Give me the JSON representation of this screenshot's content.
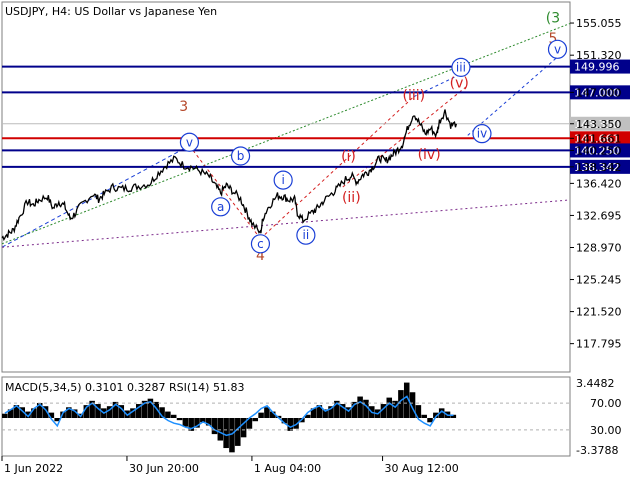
{
  "header": {
    "title": "USDJPY, H4:  US Dollar vs Japanese Yen"
  },
  "indicator": {
    "caption": "MACD(5,34,5) 0.3101 0.3287 RSI(14) 51.83",
    "macd_value": "0.3101",
    "signal_value": "0.3287",
    "rsi_value": "51.83"
  },
  "colors": {
    "price_line": "#000000",
    "blue_wave": "#1a3fd6",
    "red_wave": "#d42020",
    "green_label": "#2e8b2e",
    "brown_label": "#b5482a",
    "level_blue": "#00008b",
    "level_red": "#d10000",
    "current_price_bg": "#c0c0c0",
    "macd_line": "#1e90ff",
    "histogram": "#000000"
  },
  "chart_data": {
    "type": "line",
    "symbol": "USDJPY",
    "timeframe": "H4",
    "ylim": [
      114.5,
      157.5
    ],
    "y_ticks": [
      "155.055",
      "151.320",
      "147.000",
      "143.350",
      "141.661",
      "140.250",
      "138.342",
      "136.420",
      "132.695",
      "128.970",
      "125.245",
      "121.520",
      "117.795"
    ],
    "x_ticks": [
      "1 Jun 2022",
      "30 Jun 20:00",
      "1 Aug 04:00",
      "30 Aug 12:00"
    ],
    "current_price": 143.35,
    "price_series": [
      [
        0.0,
        130.1
      ],
      [
        0.01,
        130.5
      ],
      [
        0.02,
        131.0
      ],
      [
        0.03,
        132.4
      ],
      [
        0.045,
        134.3
      ],
      [
        0.055,
        133.9
      ],
      [
        0.065,
        134.5
      ],
      [
        0.08,
        134.9
      ],
      [
        0.09,
        133.5
      ],
      [
        0.1,
        134.3
      ],
      [
        0.11,
        133.8
      ],
      [
        0.12,
        132.3
      ],
      [
        0.13,
        133.0
      ],
      [
        0.14,
        134.0
      ],
      [
        0.16,
        135.2
      ],
      [
        0.17,
        134.6
      ],
      [
        0.18,
        135.2
      ],
      [
        0.195,
        136.0
      ],
      [
        0.21,
        135.8
      ],
      [
        0.225,
        135.9
      ],
      [
        0.24,
        136.1
      ],
      [
        0.26,
        136.4
      ],
      [
        0.275,
        137.6
      ],
      [
        0.29,
        138.6
      ],
      [
        0.305,
        139.3
      ],
      [
        0.32,
        138.5
      ],
      [
        0.335,
        138.3
      ],
      [
        0.35,
        137.8
      ],
      [
        0.365,
        137.2
      ],
      [
        0.375,
        136.2
      ],
      [
        0.385,
        135.3
      ],
      [
        0.395,
        136.2
      ],
      [
        0.405,
        135.6
      ],
      [
        0.42,
        134.6
      ],
      [
        0.43,
        133.2
      ],
      [
        0.44,
        131.8
      ],
      [
        0.455,
        130.6
      ],
      [
        0.46,
        132.5
      ],
      [
        0.47,
        133.8
      ],
      [
        0.485,
        135.0
      ],
      [
        0.495,
        134.9
      ],
      [
        0.505,
        134.5
      ],
      [
        0.515,
        134.6
      ],
      [
        0.52,
        133.0
      ],
      [
        0.53,
        132.1
      ],
      [
        0.545,
        133.0
      ],
      [
        0.555,
        133.5
      ],
      [
        0.565,
        134.3
      ],
      [
        0.58,
        135.2
      ],
      [
        0.59,
        135.8
      ],
      [
        0.605,
        136.9
      ],
      [
        0.615,
        137.3
      ],
      [
        0.625,
        136.6
      ],
      [
        0.635,
        137.4
      ],
      [
        0.645,
        137.8
      ],
      [
        0.655,
        138.5
      ],
      [
        0.665,
        139.4
      ],
      [
        0.675,
        139.0
      ],
      [
        0.685,
        139.6
      ],
      [
        0.695,
        140.2
      ],
      [
        0.705,
        141.0
      ],
      [
        0.715,
        143.0
      ],
      [
        0.725,
        144.6
      ],
      [
        0.735,
        143.4
      ],
      [
        0.745,
        142.2
      ],
      [
        0.755,
        142.8
      ],
      [
        0.765,
        142.0
      ],
      [
        0.77,
        143.6
      ],
      [
        0.78,
        144.8
      ],
      [
        0.79,
        143.2
      ],
      [
        0.8,
        143.35
      ]
    ],
    "levels": [
      {
        "price": 149.996,
        "label": "149.996",
        "color": "blue"
      },
      {
        "price": 147.0,
        "label": "147.000",
        "color": "blue"
      },
      {
        "price": 141.661,
        "label": "141.661",
        "color": "red"
      },
      {
        "price": 140.25,
        "label": "140.250",
        "color": "blue"
      },
      {
        "price": 138.342,
        "label": "138.342",
        "color": "blue"
      }
    ],
    "wave_labels": [
      {
        "text": "3",
        "x": 0.32,
        "y": 145.3,
        "color": "brown",
        "circled": false
      },
      {
        "text": "4",
        "x": 0.455,
        "y": 128.0,
        "color": "brown",
        "circled": false
      },
      {
        "text": "5",
        "x": 0.97,
        "y": 153.2,
        "color": "brown",
        "circled": false
      },
      {
        "text": "(3",
        "x": 0.97,
        "y": 155.6,
        "color": "green",
        "circled": false
      },
      {
        "text": "v",
        "x": 0.33,
        "y": 141.2,
        "color": "blue",
        "circled": true
      },
      {
        "text": "a",
        "x": 0.385,
        "y": 133.7,
        "color": "blue",
        "circled": true
      },
      {
        "text": "b",
        "x": 0.42,
        "y": 139.6,
        "color": "blue",
        "circled": true
      },
      {
        "text": "c",
        "x": 0.455,
        "y": 129.4,
        "color": "blue",
        "circled": true
      },
      {
        "text": "i",
        "x": 0.495,
        "y": 136.8,
        "color": "blue",
        "circled": true
      },
      {
        "text": "ii",
        "x": 0.535,
        "y": 130.4,
        "color": "blue",
        "circled": true
      },
      {
        "text": "(i)",
        "x": 0.61,
        "y": 139.5,
        "color": "red",
        "circled": false
      },
      {
        "text": "(ii)",
        "x": 0.615,
        "y": 134.7,
        "color": "red",
        "circled": false
      },
      {
        "text": "(iii)",
        "x": 0.725,
        "y": 146.6,
        "color": "red",
        "circled": false
      },
      {
        "text": "(iv)",
        "x": 0.752,
        "y": 139.7,
        "color": "red",
        "circled": false
      },
      {
        "text": "(v)",
        "x": 0.805,
        "y": 148.0,
        "color": "red",
        "circled": false
      },
      {
        "text": "iii",
        "x": 0.808,
        "y": 149.9,
        "color": "blue",
        "circled": true
      },
      {
        "text": "iv",
        "x": 0.845,
        "y": 142.2,
        "color": "blue",
        "circled": true
      },
      {
        "text": "v",
        "x": 0.978,
        "y": 152.0,
        "color": "blue",
        "circled": true
      }
    ],
    "macd_axis": [
      "3.4482",
      "-3.3788"
    ],
    "rsi_axis": [
      "70.00",
      "30.00"
    ],
    "macd_hist": [
      0.4,
      0.8,
      1.2,
      1.0,
      0.6,
      0.9,
      1.4,
      1.1,
      0.5,
      -0.3,
      0.6,
      1.0,
      0.8,
      0.4,
      1.2,
      1.6,
      1.3,
      0.9,
      1.1,
      1.5,
      1.2,
      0.7,
      0.9,
      1.3,
      1.6,
      1.8,
      1.5,
      1.0,
      0.6,
      0.3,
      -0.2,
      -0.8,
      -1.2,
      -0.9,
      -0.4,
      -0.7,
      -1.5,
      -2.1,
      -2.8,
      -3.2,
      -2.6,
      -1.8,
      -1.0,
      -0.3,
      0.5,
      1.0,
      0.6,
      0.2,
      -0.5,
      -1.2,
      -1.0,
      -0.4,
      0.3,
      0.9,
      1.2,
      0.8,
      1.1,
      1.6,
      1.3,
      1.0,
      1.5,
      2.0,
      1.7,
      1.1,
      0.8,
      1.3,
      1.9,
      1.6,
      2.6,
      3.3,
      2.4,
      1.2,
      0.3,
      -0.4,
      0.5,
      0.9,
      0.6,
      0.3
    ],
    "rsi_values": [
      55,
      60,
      66,
      58,
      50,
      62,
      68,
      60,
      46,
      36,
      56,
      62,
      58,
      50,
      64,
      70,
      62,
      55,
      60,
      68,
      62,
      52,
      58,
      64,
      70,
      72,
      62,
      50,
      44,
      40,
      38,
      34,
      32,
      36,
      42,
      38,
      30,
      26,
      22,
      24,
      32,
      40,
      48,
      54,
      62,
      66,
      56,
      48,
      40,
      34,
      38,
      46,
      56,
      62,
      66,
      58,
      62,
      70,
      64,
      58,
      68,
      72,
      66,
      56,
      54,
      62,
      70,
      64,
      74,
      80,
      62,
      46,
      40,
      36,
      50,
      58,
      52,
      51.83
    ]
  }
}
